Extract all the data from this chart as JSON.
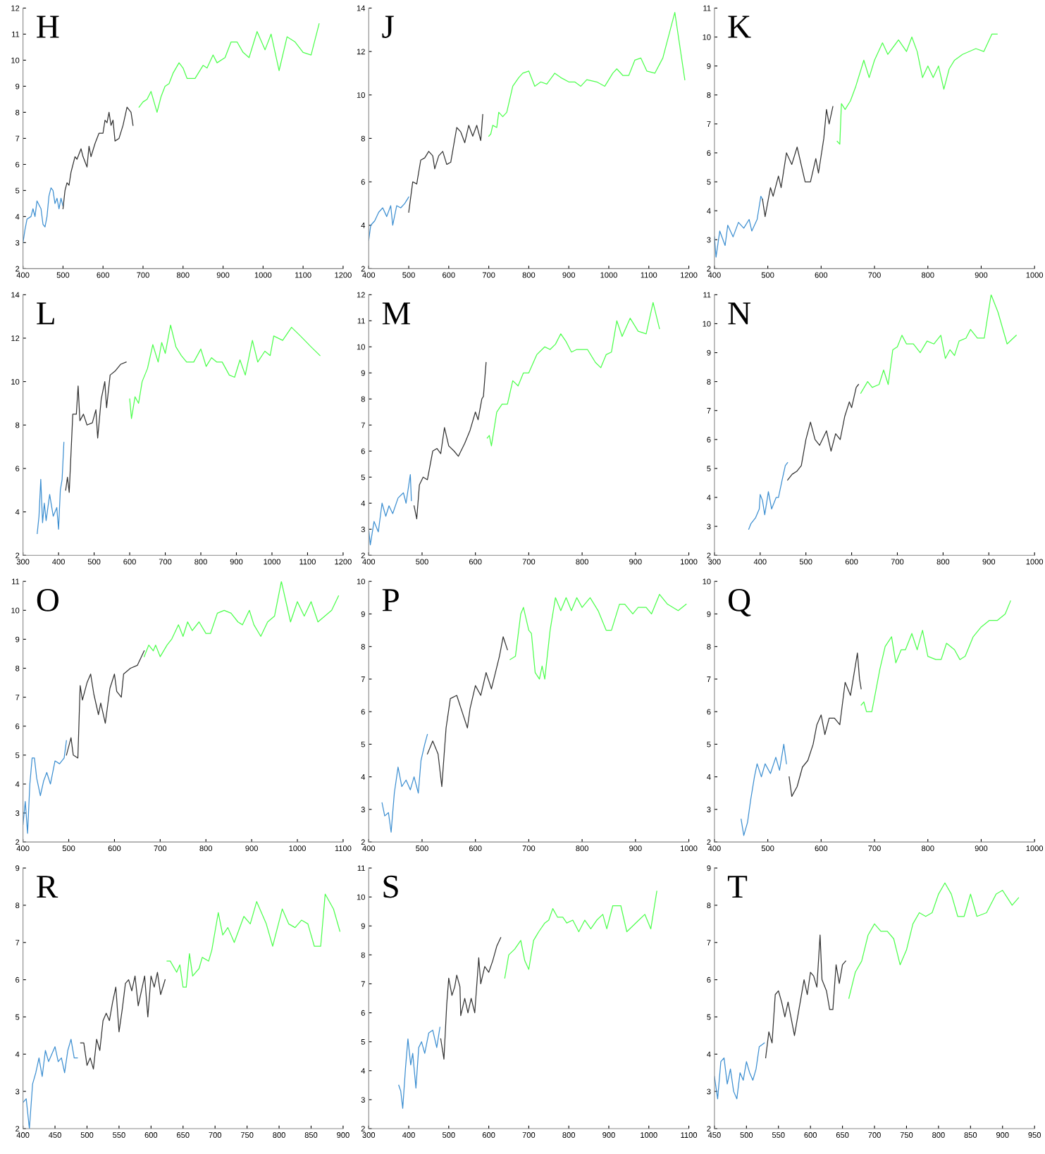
{
  "chart_data": [
    {
      "type": "line",
      "title": "H",
      "xlim": [
        400,
        1200
      ],
      "xticks": [
        400,
        500,
        600,
        700,
        800,
        900,
        1000,
        1100,
        1200
      ],
      "ylim": [
        2,
        12
      ],
      "yticks": [
        2,
        3,
        4,
        5,
        6,
        7,
        8,
        9,
        10,
        11,
        12
      ],
      "series": [
        {
          "color": "#3d8fd1",
          "x": [
            400,
            405,
            410,
            420,
            425,
            430,
            435,
            445,
            450,
            455,
            460,
            465,
            470,
            475,
            480,
            485,
            490,
            495,
            500
          ],
          "values": [
            3.0,
            3.5,
            3.9,
            4.0,
            4.3,
            4.0,
            4.6,
            4.3,
            3.7,
            3.6,
            4.0,
            4.8,
            5.1,
            5.0,
            4.5,
            4.7,
            4.3,
            4.7,
            4.4
          ]
        },
        {
          "color": "#333333",
          "x": [
            500,
            505,
            510,
            515,
            520,
            530,
            535,
            545,
            550,
            560,
            565,
            570,
            580,
            590,
            600,
            605,
            610,
            615,
            620,
            625,
            630,
            640,
            650,
            660,
            670,
            675
          ],
          "values": [
            4.3,
            5.0,
            5.3,
            5.2,
            5.7,
            6.3,
            6.2,
            6.6,
            6.3,
            5.9,
            6.7,
            6.3,
            6.8,
            7.2,
            7.2,
            7.7,
            7.6,
            8.0,
            7.5,
            7.7,
            6.9,
            7.0,
            7.5,
            8.2,
            8.0,
            7.5
          ]
        },
        {
          "color": "#4dff4d",
          "x": [
            690,
            700,
            710,
            720,
            735,
            745,
            755,
            765,
            775,
            790,
            800,
            810,
            830,
            850,
            860,
            875,
            885,
            905,
            920,
            935,
            950,
            965,
            985,
            1005,
            1020,
            1040,
            1060,
            1080,
            1100,
            1120,
            1140
          ],
          "values": [
            8.2,
            8.4,
            8.5,
            8.8,
            8.0,
            8.6,
            9.0,
            9.1,
            9.5,
            9.9,
            9.7,
            9.3,
            9.3,
            9.8,
            9.7,
            10.2,
            9.9,
            10.1,
            10.7,
            10.7,
            10.3,
            10.1,
            11.1,
            10.4,
            11.0,
            9.6,
            10.9,
            10.7,
            10.3,
            10.2,
            11.4
          ]
        }
      ]
    },
    {
      "type": "line",
      "title": "J",
      "xlim": [
        400,
        1200
      ],
      "xticks": [
        400,
        500,
        600,
        700,
        800,
        900,
        1000,
        1100,
        1200
      ],
      "ylim": [
        2,
        14
      ],
      "yticks": [
        2,
        4,
        6,
        8,
        10,
        12,
        14
      ],
      "series": [
        {
          "color": "#3d8fd1",
          "x": [
            400,
            405,
            415,
            425,
            435,
            445,
            455,
            460,
            470,
            480,
            490,
            500
          ],
          "values": [
            3.3,
            4.0,
            4.2,
            4.6,
            4.8,
            4.4,
            4.9,
            4.0,
            4.9,
            4.8,
            5.0,
            5.3
          ]
        },
        {
          "color": "#333333",
          "x": [
            500,
            510,
            520,
            530,
            540,
            550,
            560,
            565,
            575,
            585,
            595,
            605,
            620,
            630,
            640,
            650,
            660,
            670,
            680,
            685
          ],
          "values": [
            4.6,
            6.0,
            5.9,
            7.0,
            7.1,
            7.4,
            7.2,
            6.6,
            7.2,
            7.4,
            6.8,
            6.9,
            8.5,
            8.3,
            7.8,
            8.6,
            8.1,
            8.6,
            7.9,
            9.1
          ]
        },
        {
          "color": "#4dff4d",
          "x": [
            700,
            705,
            710,
            720,
            725,
            735,
            745,
            760,
            775,
            785,
            800,
            815,
            830,
            845,
            865,
            880,
            900,
            915,
            930,
            945,
            970,
            990,
            1010,
            1020,
            1035,
            1050,
            1065,
            1080,
            1095,
            1115,
            1135,
            1165,
            1190
          ],
          "values": [
            8.1,
            8.2,
            8.6,
            8.5,
            9.2,
            9.0,
            9.2,
            10.4,
            10.8,
            11.0,
            11.1,
            10.4,
            10.6,
            10.5,
            11.0,
            10.8,
            10.6,
            10.6,
            10.4,
            10.7,
            10.6,
            10.4,
            11.0,
            11.2,
            10.9,
            10.9,
            11.6,
            11.7,
            11.1,
            11.0,
            11.7,
            13.8,
            10.7
          ]
        }
      ]
    },
    {
      "type": "line",
      "title": "K",
      "xlim": [
        400,
        1000
      ],
      "xticks": [
        400,
        500,
        600,
        700,
        800,
        900,
        1000
      ],
      "ylim": [
        2,
        11
      ],
      "yticks": [
        2,
        3,
        4,
        5,
        6,
        7,
        8,
        9,
        10,
        11
      ],
      "series": [
        {
          "color": "#3d8fd1",
          "x": [
            400,
            403,
            410,
            420,
            425,
            435,
            445,
            455,
            465,
            470,
            480,
            487,
            490
          ],
          "values": [
            3.1,
            2.4,
            3.3,
            2.8,
            3.5,
            3.1,
            3.6,
            3.4,
            3.7,
            3.3,
            3.7,
            4.5,
            4.4
          ]
        },
        {
          "color": "#333333",
          "x": [
            490,
            495,
            505,
            510,
            520,
            525,
            535,
            545,
            555,
            570,
            580,
            590,
            595,
            605,
            610,
            615,
            622
          ],
          "values": [
            4.4,
            3.8,
            4.8,
            4.5,
            5.2,
            4.8,
            6.0,
            5.6,
            6.2,
            5.0,
            5.0,
            5.8,
            5.3,
            6.5,
            7.5,
            7.0,
            7.6
          ]
        },
        {
          "color": "#4dff4d",
          "x": [
            630,
            635,
            638,
            645,
            655,
            665,
            680,
            690,
            700,
            715,
            725,
            745,
            760,
            770,
            780,
            790,
            800,
            810,
            820,
            830,
            840,
            850,
            865,
            890,
            905,
            920,
            930
          ],
          "values": [
            6.4,
            6.3,
            7.7,
            7.5,
            7.8,
            8.3,
            9.2,
            8.6,
            9.2,
            9.8,
            9.4,
            9.9,
            9.5,
            10.0,
            9.5,
            8.6,
            9.0,
            8.6,
            9.0,
            8.2,
            8.9,
            9.2,
            9.4,
            9.6,
            9.5,
            10.1,
            10.1
          ]
        }
      ]
    },
    {
      "type": "line",
      "title": "L",
      "xlim": [
        300,
        1200
      ],
      "xticks": [
        300,
        400,
        500,
        600,
        700,
        800,
        900,
        1000,
        1100,
        1200
      ],
      "ylim": [
        2,
        14
      ],
      "yticks": [
        2,
        4,
        6,
        8,
        10,
        12,
        14
      ],
      "series": [
        {
          "color": "#3d8fd1",
          "x": [
            340,
            345,
            350,
            355,
            360,
            365,
            375,
            385,
            395,
            400,
            405,
            410,
            415
          ],
          "values": [
            3.0,
            3.8,
            5.5,
            3.5,
            4.4,
            3.6,
            4.8,
            3.8,
            4.2,
            3.2,
            5.0,
            5.5,
            7.2
          ]
        },
        {
          "color": "#333333",
          "x": [
            420,
            425,
            430,
            440,
            450,
            455,
            460,
            470,
            480,
            495,
            505,
            510,
            520,
            530,
            535,
            545,
            560,
            575,
            590
          ],
          "values": [
            5.0,
            5.6,
            4.9,
            8.5,
            8.5,
            9.8,
            8.2,
            8.5,
            8.0,
            8.1,
            8.7,
            7.4,
            9.2,
            10.0,
            8.8,
            10.3,
            10.5,
            10.8,
            10.9
          ]
        },
        {
          "color": "#4dff4d",
          "x": [
            600,
            605,
            615,
            625,
            635,
            650,
            665,
            680,
            690,
            700,
            715,
            730,
            745,
            760,
            780,
            800,
            815,
            830,
            845,
            860,
            880,
            895,
            910,
            925,
            945,
            960,
            980,
            995,
            1005,
            1030,
            1055,
            1080,
            1110,
            1135
          ],
          "values": [
            9.2,
            8.3,
            9.3,
            9.0,
            10.0,
            10.6,
            11.7,
            10.9,
            11.8,
            11.3,
            12.6,
            11.6,
            11.2,
            10.9,
            10.9,
            11.5,
            10.7,
            11.1,
            10.9,
            10.9,
            10.3,
            10.2,
            11.0,
            10.3,
            11.9,
            10.9,
            11.4,
            11.2,
            12.1,
            11.9,
            12.5,
            12.1,
            11.6,
            11.2
          ]
        }
      ]
    },
    {
      "type": "line",
      "title": "M",
      "xlim": [
        400,
        1000
      ],
      "xticks": [
        400,
        500,
        600,
        700,
        800,
        900,
        1000
      ],
      "ylim": [
        2,
        12
      ],
      "yticks": [
        2,
        3,
        4,
        5,
        6,
        7,
        8,
        9,
        10,
        11,
        12
      ],
      "series": [
        {
          "color": "#3d8fd1",
          "x": [
            400,
            403,
            410,
            418,
            425,
            432,
            438,
            445,
            455,
            465,
            470,
            478,
            480
          ],
          "values": [
            3.0,
            2.4,
            3.3,
            2.9,
            4.0,
            3.5,
            3.9,
            3.6,
            4.2,
            4.4,
            4.0,
            5.1,
            4.1
          ]
        },
        {
          "color": "#333333",
          "x": [
            485,
            490,
            495,
            502,
            510,
            520,
            528,
            535,
            542,
            550,
            560,
            568,
            580,
            590,
            600,
            605,
            612,
            615,
            620
          ],
          "values": [
            3.9,
            3.4,
            4.7,
            5.0,
            4.9,
            6.0,
            6.1,
            5.9,
            6.9,
            6.2,
            6.0,
            5.8,
            6.3,
            6.8,
            7.5,
            7.2,
            8.0,
            8.1,
            9.4
          ]
        },
        {
          "color": "#4dff4d",
          "x": [
            622,
            626,
            630,
            640,
            650,
            660,
            670,
            680,
            690,
            700,
            715,
            730,
            740,
            750,
            760,
            770,
            780,
            790,
            810,
            825,
            835,
            845,
            855,
            865,
            875,
            890,
            905,
            920,
            933,
            945
          ],
          "values": [
            6.5,
            6.6,
            6.2,
            7.5,
            7.8,
            7.8,
            8.7,
            8.5,
            9.0,
            9.0,
            9.7,
            10.0,
            9.9,
            10.1,
            10.5,
            10.2,
            9.8,
            9.9,
            9.9,
            9.4,
            9.2,
            9.7,
            9.8,
            11.0,
            10.4,
            11.1,
            10.6,
            10.5,
            11.7,
            10.7
          ]
        }
      ]
    },
    {
      "type": "line",
      "title": "N",
      "xlim": [
        300,
        1000
      ],
      "xticks": [
        300,
        400,
        500,
        600,
        700,
        800,
        900,
        1000
      ],
      "ylim": [
        2,
        11
      ],
      "yticks": [
        2,
        3,
        4,
        5,
        6,
        7,
        8,
        9,
        10,
        11
      ],
      "series": [
        {
          "color": "#3d8fd1",
          "x": [
            375,
            380,
            390,
            398,
            400,
            405,
            410,
            418,
            425,
            435,
            440,
            448,
            455,
            460
          ],
          "values": [
            2.9,
            3.1,
            3.3,
            3.6,
            4.1,
            3.9,
            3.4,
            4.2,
            3.6,
            4.0,
            4.0,
            4.6,
            5.1,
            5.2
          ]
        },
        {
          "color": "#333333",
          "x": [
            460,
            470,
            480,
            490,
            500,
            510,
            520,
            530,
            545,
            555,
            565,
            575,
            585,
            595,
            600,
            610,
            615
          ],
          "values": [
            4.6,
            4.8,
            4.9,
            5.1,
            6.0,
            6.6,
            6.0,
            5.8,
            6.3,
            5.6,
            6.2,
            6.0,
            6.8,
            7.3,
            7.1,
            7.8,
            7.9
          ]
        },
        {
          "color": "#4dff4d",
          "x": [
            620,
            635,
            645,
            660,
            670,
            680,
            690,
            700,
            710,
            720,
            735,
            750,
            765,
            780,
            795,
            805,
            815,
            825,
            835,
            850,
            860,
            875,
            890,
            905,
            920,
            940,
            960
          ],
          "values": [
            7.6,
            8.0,
            7.8,
            7.9,
            8.4,
            7.9,
            9.1,
            9.2,
            9.6,
            9.3,
            9.3,
            9.0,
            9.4,
            9.3,
            9.6,
            8.8,
            9.1,
            8.9,
            9.4,
            9.5,
            9.8,
            9.5,
            9.5,
            11.0,
            10.4,
            9.3,
            9.6
          ]
        }
      ]
    },
    {
      "type": "line",
      "title": "O",
      "xlim": [
        400,
        1100
      ],
      "xticks": [
        400,
        500,
        600,
        700,
        800,
        900,
        1000,
        1100
      ],
      "ylim": [
        2,
        11
      ],
      "yticks": [
        2,
        3,
        4,
        5,
        6,
        7,
        8,
        9,
        10,
        11
      ],
      "series": [
        {
          "color": "#3d8fd1",
          "x": [
            400,
            405,
            410,
            415,
            420,
            425,
            430,
            438,
            445,
            452,
            460,
            470,
            480,
            490,
            495
          ],
          "values": [
            2.6,
            3.4,
            2.3,
            4.0,
            4.9,
            4.9,
            4.2,
            3.6,
            4.1,
            4.4,
            4.0,
            4.8,
            4.7,
            4.9,
            5.5
          ]
        },
        {
          "color": "#333333",
          "x": [
            495,
            505,
            510,
            520,
            525,
            530,
            540,
            548,
            555,
            565,
            570,
            580,
            590,
            600,
            605,
            615,
            620,
            635,
            650,
            665
          ],
          "values": [
            5.0,
            5.6,
            5.0,
            4.9,
            7.4,
            6.9,
            7.5,
            7.8,
            7.1,
            6.4,
            6.8,
            6.1,
            7.3,
            7.8,
            7.2,
            7.0,
            7.8,
            8.0,
            8.1,
            8.6
          ]
        },
        {
          "color": "#4dff4d",
          "x": [
            665,
            675,
            685,
            690,
            700,
            715,
            725,
            740,
            750,
            760,
            770,
            785,
            800,
            810,
            825,
            840,
            855,
            870,
            880,
            895,
            905,
            920,
            935,
            950,
            965,
            985,
            1000,
            1015,
            1030,
            1045,
            1060,
            1075,
            1090
          ],
          "values": [
            8.4,
            8.8,
            8.6,
            8.8,
            8.4,
            8.8,
            9.0,
            9.5,
            9.1,
            9.6,
            9.3,
            9.6,
            9.2,
            9.2,
            9.9,
            10.0,
            9.9,
            9.6,
            9.5,
            10.0,
            9.5,
            9.1,
            9.6,
            9.8,
            11.0,
            9.6,
            10.3,
            9.8,
            10.3,
            9.6,
            9.8,
            10.0,
            10.5
          ]
        }
      ]
    },
    {
      "type": "line",
      "title": "P",
      "xlim": [
        400,
        1000
      ],
      "xticks": [
        400,
        500,
        600,
        700,
        800,
        900,
        1000
      ],
      "ylim": [
        2,
        10
      ],
      "yticks": [
        2,
        3,
        4,
        5,
        6,
        7,
        8,
        9,
        10
      ],
      "series": [
        {
          "color": "#3d8fd1",
          "x": [
            425,
            430,
            437,
            442,
            448,
            455,
            462,
            470,
            478,
            485,
            493,
            498,
            505,
            510
          ],
          "values": [
            3.2,
            2.8,
            2.9,
            2.3,
            3.5,
            4.3,
            3.7,
            3.9,
            3.6,
            4.0,
            3.5,
            4.5,
            5.0,
            5.3
          ]
        },
        {
          "color": "#333333",
          "x": [
            510,
            520,
            530,
            537,
            545,
            553,
            565,
            575,
            585,
            590,
            600,
            610,
            620,
            630,
            645,
            652,
            660
          ],
          "values": [
            4.7,
            5.1,
            4.7,
            3.7,
            5.5,
            6.4,
            6.5,
            6.0,
            5.5,
            6.1,
            6.8,
            6.5,
            7.2,
            6.7,
            7.7,
            8.3,
            7.9
          ]
        },
        {
          "color": "#4dff4d",
          "x": [
            665,
            675,
            685,
            690,
            700,
            705,
            712,
            720,
            725,
            730,
            740,
            750,
            760,
            770,
            780,
            790,
            800,
            815,
            830,
            845,
            855,
            870,
            880,
            895,
            905,
            920,
            930,
            945,
            960,
            980,
            995
          ],
          "values": [
            7.6,
            7.7,
            9.0,
            9.2,
            8.5,
            8.4,
            7.2,
            7.0,
            7.4,
            7.0,
            8.5,
            9.5,
            9.1,
            9.5,
            9.1,
            9.5,
            9.2,
            9.5,
            9.1,
            8.5,
            8.5,
            9.3,
            9.3,
            9.0,
            9.2,
            9.2,
            9.0,
            9.6,
            9.3,
            9.1,
            9.3
          ]
        }
      ]
    },
    {
      "type": "line",
      "title": "Q",
      "xlim": [
        400,
        1000
      ],
      "xticks": [
        400,
        500,
        600,
        700,
        800,
        900,
        1000
      ],
      "ylim": [
        2,
        10
      ],
      "yticks": [
        2,
        3,
        4,
        5,
        6,
        7,
        8,
        9,
        10
      ],
      "series": [
        {
          "color": "#3d8fd1",
          "x": [
            450,
            455,
            462,
            468,
            475,
            480,
            488,
            495,
            505,
            515,
            522,
            530,
            535
          ],
          "values": [
            2.7,
            2.2,
            2.6,
            3.3,
            4.0,
            4.4,
            4.0,
            4.4,
            4.1,
            4.6,
            4.2,
            5.0,
            4.4
          ]
        },
        {
          "color": "#333333",
          "x": [
            540,
            545,
            555,
            565,
            575,
            585,
            592,
            600,
            607,
            615,
            625,
            635,
            645,
            655,
            668,
            672,
            675
          ],
          "values": [
            4.0,
            3.4,
            3.7,
            4.3,
            4.5,
            5.0,
            5.6,
            5.9,
            5.3,
            5.8,
            5.8,
            5.6,
            6.9,
            6.5,
            7.8,
            7.0,
            6.7
          ]
        },
        {
          "color": "#4dff4d",
          "x": [
            675,
            680,
            685,
            695,
            702,
            710,
            720,
            732,
            740,
            750,
            758,
            770,
            780,
            790,
            800,
            815,
            825,
            835,
            850,
            860,
            870,
            885,
            900,
            915,
            930,
            945,
            955
          ],
          "values": [
            6.2,
            6.3,
            6.0,
            6.0,
            6.6,
            7.3,
            8.0,
            8.3,
            7.5,
            7.9,
            7.9,
            8.4,
            7.9,
            8.5,
            7.7,
            7.6,
            7.6,
            8.1,
            7.9,
            7.6,
            7.7,
            8.3,
            8.6,
            8.8,
            8.8,
            9.0,
            9.4
          ]
        }
      ]
    },
    {
      "type": "line",
      "title": "R",
      "xlim": [
        400,
        900
      ],
      "xticks": [
        400,
        450,
        500,
        550,
        600,
        650,
        700,
        750,
        800,
        850,
        900
      ],
      "ylim": [
        2,
        9
      ],
      "yticks": [
        2,
        3,
        4,
        5,
        6,
        7,
        8,
        9
      ],
      "series": [
        {
          "color": "#3d8fd1",
          "x": [
            400,
            405,
            410,
            415,
            420,
            425,
            430,
            435,
            440,
            445,
            450,
            455,
            460,
            465,
            470,
            475,
            480,
            485
          ],
          "values": [
            2.7,
            2.8,
            2.0,
            3.2,
            3.5,
            3.9,
            3.4,
            4.1,
            3.8,
            4.0,
            4.2,
            3.8,
            3.9,
            3.5,
            4.1,
            4.4,
            3.9,
            3.9
          ]
        },
        {
          "color": "#333333",
          "x": [
            490,
            495,
            500,
            505,
            510,
            515,
            520,
            525,
            530,
            535,
            540,
            545,
            550,
            555,
            560,
            565,
            570,
            575,
            580,
            590,
            595,
            600,
            605,
            610,
            615,
            622
          ],
          "values": [
            4.3,
            4.3,
            3.7,
            3.9,
            3.6,
            4.4,
            4.1,
            4.9,
            5.1,
            4.9,
            5.4,
            5.8,
            4.6,
            5.2,
            5.9,
            6.0,
            5.7,
            6.1,
            5.3,
            6.1,
            5.0,
            6.1,
            5.8,
            6.2,
            5.6,
            6.0
          ]
        },
        {
          "color": "#4dff4d",
          "x": [
            625,
            630,
            640,
            645,
            650,
            655,
            660,
            665,
            675,
            680,
            690,
            695,
            705,
            712,
            720,
            730,
            745,
            755,
            765,
            780,
            790,
            805,
            815,
            825,
            835,
            845,
            855,
            865,
            872,
            885,
            895
          ],
          "values": [
            6.5,
            6.5,
            6.2,
            6.4,
            5.8,
            5.8,
            6.7,
            6.1,
            6.3,
            6.6,
            6.5,
            6.8,
            7.8,
            7.2,
            7.4,
            7.0,
            7.7,
            7.5,
            8.1,
            7.5,
            6.9,
            7.9,
            7.5,
            7.4,
            7.6,
            7.5,
            6.9,
            6.9,
            8.3,
            7.9,
            7.3
          ]
        }
      ]
    },
    {
      "type": "line",
      "title": "S",
      "xlim": [
        300,
        1100
      ],
      "xticks": [
        300,
        400,
        500,
        600,
        700,
        800,
        900,
        1000,
        1100
      ],
      "ylim": [
        2,
        11
      ],
      "yticks": [
        2,
        3,
        4,
        5,
        6,
        7,
        8,
        9,
        10,
        11
      ],
      "series": [
        {
          "color": "#3d8fd1",
          "x": [
            375,
            380,
            385,
            392,
            398,
            405,
            410,
            418,
            425,
            432,
            440,
            450,
            460,
            470,
            478
          ],
          "values": [
            3.5,
            3.3,
            2.7,
            4.1,
            5.1,
            4.2,
            4.6,
            3.4,
            4.8,
            5.0,
            4.6,
            5.3,
            5.4,
            4.8,
            5.5
          ]
        },
        {
          "color": "#333333",
          "x": [
            480,
            488,
            495,
            500,
            508,
            515,
            520,
            528,
            530,
            540,
            548,
            556,
            565,
            575,
            580,
            590,
            600,
            610,
            620,
            630
          ],
          "values": [
            5.1,
            4.4,
            6.3,
            7.2,
            6.6,
            6.9,
            7.3,
            6.9,
            5.9,
            6.5,
            6.0,
            6.5,
            6.0,
            7.9,
            7.0,
            7.6,
            7.4,
            7.8,
            8.3,
            8.6
          ]
        },
        {
          "color": "#4dff4d",
          "x": [
            640,
            650,
            665,
            680,
            690,
            700,
            712,
            725,
            740,
            750,
            760,
            772,
            785,
            795,
            810,
            825,
            840,
            855,
            870,
            885,
            895,
            910,
            930,
            945,
            960,
            975,
            990,
            1005,
            1020
          ],
          "values": [
            7.2,
            8.0,
            8.2,
            8.5,
            7.8,
            7.5,
            8.5,
            8.8,
            9.1,
            9.2,
            9.6,
            9.3,
            9.3,
            9.1,
            9.2,
            8.8,
            9.2,
            8.9,
            9.2,
            9.4,
            8.9,
            9.7,
            9.7,
            8.8,
            9.0,
            9.2,
            9.4,
            8.9,
            10.2
          ]
        }
      ]
    },
    {
      "type": "line",
      "title": "T",
      "xlim": [
        450,
        950
      ],
      "xticks": [
        450,
        500,
        550,
        600,
        650,
        700,
        750,
        800,
        850,
        900,
        950
      ],
      "ylim": [
        2,
        9
      ],
      "yticks": [
        2,
        3,
        4,
        5,
        6,
        7,
        8,
        9
      ],
      "series": [
        {
          "color": "#3d8fd1",
          "x": [
            450,
            455,
            460,
            465,
            470,
            475,
            480,
            485,
            490,
            495,
            500,
            505,
            510,
            515,
            520,
            528
          ],
          "values": [
            3.4,
            2.8,
            3.8,
            3.9,
            3.2,
            3.6,
            3.0,
            2.8,
            3.5,
            3.3,
            3.8,
            3.5,
            3.3,
            3.6,
            4.2,
            4.3
          ]
        },
        {
          "color": "#333333",
          "x": [
            530,
            535,
            540,
            545,
            550,
            555,
            560,
            565,
            575,
            580,
            585,
            590,
            595,
            600,
            605,
            610,
            615,
            618,
            625,
            630,
            635,
            640,
            645,
            650,
            655
          ],
          "values": [
            3.9,
            4.6,
            4.3,
            5.6,
            5.7,
            5.4,
            5.0,
            5.4,
            4.5,
            5.0,
            5.5,
            6.0,
            5.6,
            6.2,
            6.1,
            5.8,
            7.2,
            6.0,
            5.7,
            5.2,
            5.2,
            6.4,
            5.9,
            6.4,
            6.5
          ]
        },
        {
          "color": "#4dff4d",
          "x": [
            660,
            670,
            680,
            690,
            700,
            710,
            720,
            730,
            740,
            750,
            760,
            770,
            780,
            790,
            800,
            810,
            820,
            830,
            840,
            850,
            860,
            875,
            890,
            900,
            915,
            925
          ],
          "values": [
            5.5,
            6.2,
            6.5,
            7.2,
            7.5,
            7.3,
            7.3,
            7.1,
            6.4,
            6.8,
            7.5,
            7.8,
            7.7,
            7.8,
            8.3,
            8.6,
            8.3,
            7.7,
            7.7,
            8.3,
            7.7,
            7.8,
            8.3,
            8.4,
            8.0,
            8.2
          ]
        }
      ]
    }
  ]
}
